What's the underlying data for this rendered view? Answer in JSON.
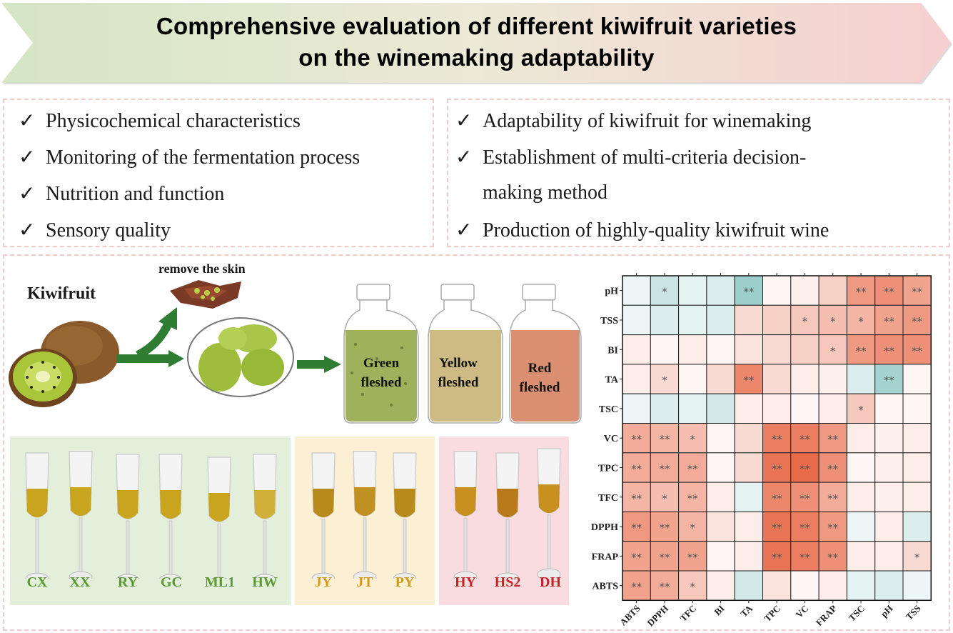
{
  "title": {
    "line1": "Comprehensive evaluation  of different kiwifruit varieties",
    "line2": "on the winemaking adaptability"
  },
  "left_list": [
    "Physicochemical characteristics",
    "Monitoring of the fermentation process",
    "Nutrition and function",
    "Sensory quality"
  ],
  "right_list": [
    "Adaptability of  kiwifruit for winemaking",
    "Establishment of multi-criteria decision-",
    "making method",
    "Production of highly-quality kiwifruit wine"
  ],
  "check_mark": "✓",
  "process": {
    "kiwifruit_label": "Kiwifruit",
    "remove_skin_label": "remove the skin",
    "jars": [
      {
        "line1": "Green",
        "line2": "fleshed",
        "color": "#9fb15a"
      },
      {
        "line1": "Yellow",
        "line2": "fleshed",
        "color": "#cdbb83"
      },
      {
        "line1": "Red",
        "line2": "fleshed",
        "color": "#d98f70"
      }
    ]
  },
  "wine_groups": [
    {
      "color": "#5b9a32",
      "bg": "#e3eedb",
      "names": [
        "CX",
        "XX",
        "RY",
        "GC",
        "ML1",
        "HW"
      ]
    },
    {
      "color": "#d49a1c",
      "bg": "#fbf0d3",
      "names": [
        "JY",
        "JT",
        "PY"
      ]
    },
    {
      "color": "#c8252a",
      "bg": "#f8dcdf",
      "names": [
        "HY",
        "HS2",
        "DH"
      ]
    }
  ],
  "colors": {
    "positive_strong": "#e8694a",
    "negative_strong": "#7fbdb9",
    "banner_left": "#d6e6c6",
    "banner_right": "#f6d2d2"
  },
  "chart_data": {
    "type": "heatmap",
    "rows": [
      "pH",
      "TSS",
      "BI",
      "TA",
      "TSC",
      "VC",
      "TPC",
      "TFC",
      "DPPH",
      "FRAP",
      "ABTS"
    ],
    "cols": [
      "ABTS",
      "DPPH",
      "TFC",
      "BI",
      "TA",
      "TPC",
      "VC",
      "FRAP",
      "TSC",
      "pH",
      "TSS"
    ],
    "values": [
      [
        -0.1,
        -0.3,
        -0.15,
        -0.2,
        -0.55,
        0.05,
        0.08,
        0.25,
        0.55,
        0.6,
        0.5
      ],
      [
        -0.1,
        -0.2,
        -0.15,
        -0.2,
        0.2,
        0.25,
        0.3,
        0.35,
        0.4,
        0.5,
        0.55
      ],
      [
        0.1,
        0.05,
        0.1,
        0.05,
        0.15,
        0.2,
        0.25,
        0.3,
        0.55,
        0.6,
        0.6
      ],
      [
        0.1,
        0.2,
        0.05,
        0.2,
        0.65,
        0.2,
        0.1,
        0.08,
        -0.2,
        -0.5,
        0.05
      ],
      [
        -0.1,
        -0.2,
        -0.15,
        -0.25,
        0.1,
        0.1,
        0.05,
        0.1,
        0.3,
        0.05,
        0.05
      ],
      [
        0.45,
        0.4,
        0.35,
        0.05,
        0.2,
        0.7,
        0.7,
        0.55,
        0.1,
        0.08,
        0.1
      ],
      [
        0.45,
        0.45,
        0.45,
        0.05,
        0.2,
        0.75,
        0.8,
        0.6,
        0.05,
        0.08,
        0.1
      ],
      [
        0.4,
        0.35,
        0.4,
        0.1,
        -0.15,
        0.65,
        0.6,
        0.45,
        0.1,
        0.08,
        0.1
      ],
      [
        0.55,
        0.5,
        0.4,
        0.15,
        0.1,
        0.75,
        0.7,
        0.55,
        -0.1,
        0.1,
        -0.2
      ],
      [
        0.5,
        0.5,
        0.5,
        0.05,
        0.1,
        0.75,
        0.7,
        0.6,
        0.1,
        0.1,
        0.2
      ],
      [
        0.5,
        0.45,
        0.3,
        0.1,
        -0.25,
        0.15,
        0.05,
        0.1,
        -0.15,
        -0.2,
        -0.1
      ]
    ],
    "significance": [
      [
        "",
        "*",
        "",
        "",
        "**",
        "",
        "",
        "",
        "**",
        "**",
        "**"
      ],
      [
        "",
        "",
        "",
        "",
        "",
        "",
        "*",
        "*",
        "*",
        "**",
        "**"
      ],
      [
        "",
        "",
        "",
        "",
        "",
        "",
        "",
        "*",
        "**",
        "**",
        "**"
      ],
      [
        "",
        "*",
        "",
        "",
        "**",
        "",
        "",
        "",
        "",
        "**",
        ""
      ],
      [
        "",
        "",
        "",
        "",
        "",
        "",
        "",
        "",
        "*",
        "",
        ""
      ],
      [
        "**",
        "**",
        "*",
        "",
        "",
        "**",
        "**",
        "**",
        "",
        "",
        ""
      ],
      [
        "**",
        "**",
        "**",
        "",
        "",
        "**",
        "**",
        "**",
        "",
        "",
        ""
      ],
      [
        "**",
        "*",
        "**",
        "",
        "",
        "**",
        "**",
        "**",
        "",
        "",
        ""
      ],
      [
        "**",
        "**",
        "*",
        "",
        "",
        "**",
        "**",
        "**",
        "",
        "",
        ""
      ],
      [
        "**",
        "**",
        "**",
        "",
        "",
        "**",
        "**",
        "**",
        "",
        "",
        "*"
      ],
      [
        "**",
        "**",
        "*",
        "",
        "",
        "",
        "",
        "",
        "",
        "",
        ""
      ]
    ]
  }
}
